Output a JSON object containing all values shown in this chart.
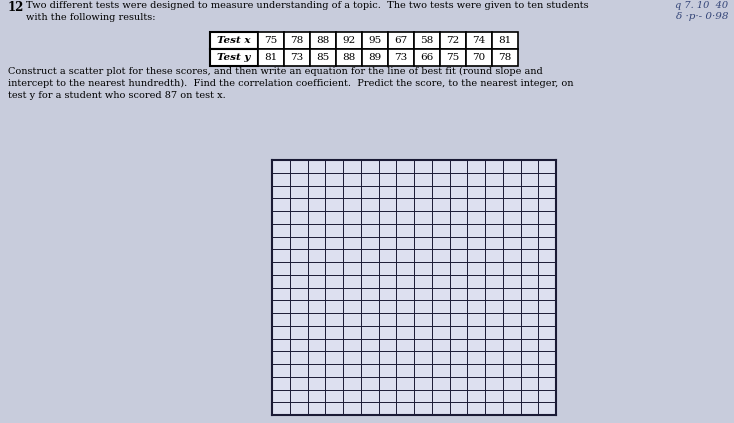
{
  "background_color": "#c8ccdc",
  "problem_number": "12",
  "problem_text_line1": "Two different tests were designed to measure understanding of a topic.  The two tests were given to ten students",
  "problem_text_line2": "with the following results:",
  "table_headers": [
    "Test x",
    "Test y"
  ],
  "test_x": [
    75,
    78,
    88,
    92,
    95,
    67,
    58,
    72,
    74,
    81
  ],
  "test_y": [
    81,
    73,
    85,
    88,
    89,
    73,
    66,
    75,
    70,
    78
  ],
  "body_text_line1": "Construct a scatter plot for these scores, and then write an equation for the line of best fit (round slope and",
  "body_text_line2": "intercept to the nearest hundredth).  Find the correlation coefficient.  Predict the score, to the nearest integer, on",
  "body_text_line3": "test y for a student who scored 87 on test x.",
  "grid_rows": 20,
  "grid_cols": 16,
  "grid_color": "#1a1a35",
  "grid_bg": "#dde0f0",
  "top_right_text1": "q 7. 10  40",
  "top_right_text2": "δ ·p·- 0·98"
}
